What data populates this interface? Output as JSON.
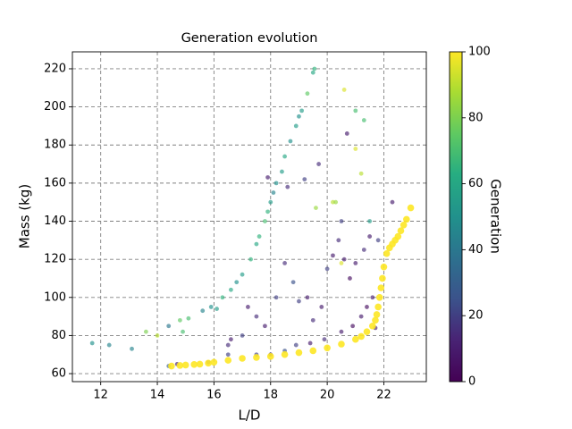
{
  "chart_data": {
    "type": "scatter",
    "title": "Generation evolution",
    "x_label": "L/D",
    "y_label": "Mass (kg)",
    "colorbar_label": "Generation",
    "colormap": "viridis",
    "xlim": [
      11.0,
      23.5
    ],
    "ylim": [
      55.8,
      228.9
    ],
    "xticks": [
      12,
      14,
      16,
      18,
      20,
      22
    ],
    "yticks": [
      60,
      80,
      100,
      120,
      140,
      160,
      180,
      200,
      220
    ],
    "clim": [
      0,
      100
    ],
    "cticks": [
      0,
      20,
      40,
      60,
      80,
      100
    ],
    "grid": true,
    "x": [
      11.7,
      12.3,
      13.1,
      13.6,
      14.0,
      14.4,
      14.8,
      14.9,
      15.1,
      15.6,
      15.9,
      16.1,
      16.3,
      16.6,
      16.8,
      17.0,
      17.3,
      17.5,
      17.6,
      17.8,
      17.9,
      18.0,
      18.1,
      18.2,
      18.4,
      18.5,
      18.7,
      18.9,
      19.0,
      19.1,
      19.3,
      19.5,
      19.55,
      16.6,
      16.5,
      17.0,
      17.2,
      17.5,
      17.8,
      18.2,
      18.5,
      18.8,
      19.0,
      19.3,
      19.5,
      19.8,
      20.0,
      20.2,
      20.4,
      20.5,
      20.6,
      20.8,
      21.0,
      21.3,
      21.5,
      19.7,
      20.7,
      19.2,
      18.6,
      17.9,
      21.0,
      21.2,
      20.2,
      21.8,
      22.3,
      21.6,
      21.4,
      21.2,
      20.9,
      20.5,
      19.9,
      19.4,
      18.9,
      18.5,
      18.0,
      17.5,
      16.5,
      15.8,
      14.4,
      14.7,
      21.7,
      20.6,
      21.3,
      19.6,
      20.3,
      21.0,
      21.5,
      20.5,
      14.5,
      14.8,
      15.0,
      15.3,
      15.5,
      15.8,
      16.0,
      16.5,
      17.0,
      17.5,
      18.0,
      18.5,
      19.0,
      19.5,
      20.0,
      20.5,
      21.0,
      21.2,
      21.4,
      21.6,
      21.7,
      21.75,
      21.8,
      21.85,
      21.9,
      21.95,
      22.0,
      22.1,
      22.2,
      22.3,
      22.4,
      22.5,
      22.6,
      22.7,
      22.8,
      22.95
    ],
    "y": [
      76,
      75,
      73,
      82,
      80,
      85,
      88,
      82,
      89,
      93,
      95,
      94,
      100,
      104,
      108,
      112,
      120,
      128,
      132,
      140,
      145,
      150,
      155,
      160,
      166,
      174,
      182,
      190,
      195,
      198,
      207,
      218,
      220,
      78,
      75,
      80,
      95,
      90,
      85,
      100,
      118,
      108,
      98,
      100,
      88,
      95,
      115,
      122,
      130,
      140,
      120,
      110,
      118,
      125,
      132,
      170,
      186,
      162,
      158,
      163,
      198,
      165,
      150,
      130,
      150,
      100,
      95,
      90,
      85,
      82,
      78,
      76,
      75,
      72,
      70,
      70,
      70,
      66,
      64,
      65,
      84,
      209,
      193,
      147,
      150,
      178,
      140,
      118,
      64,
      64.3,
      64.5,
      64.8,
      65,
      65.5,
      66,
      67,
      68,
      68.5,
      69,
      70,
      71,
      72,
      73.5,
      75.5,
      78,
      79.5,
      82,
      85,
      88,
      91,
      95,
      100,
      105,
      110,
      116,
      123,
      126,
      128,
      130,
      132,
      135,
      138,
      141,
      147
    ],
    "c": [
      50,
      45,
      45,
      80,
      90,
      40,
      75,
      70,
      70,
      45,
      50,
      55,
      65,
      60,
      50,
      55,
      65,
      60,
      65,
      70,
      65,
      55,
      45,
      50,
      55,
      60,
      50,
      55,
      50,
      55,
      75,
      60,
      65,
      10,
      15,
      20,
      10,
      15,
      10,
      20,
      15,
      25,
      20,
      10,
      15,
      10,
      20,
      10,
      15,
      20,
      10,
      5,
      10,
      15,
      10,
      15,
      10,
      20,
      15,
      10,
      70,
      90,
      90,
      20,
      10,
      10,
      5,
      10,
      5,
      10,
      15,
      10,
      20,
      25,
      15,
      20,
      20,
      15,
      30,
      10,
      10,
      95,
      70,
      85,
      85,
      95,
      55,
      95,
      100,
      100,
      100,
      100,
      100,
      100,
      100,
      100,
      100,
      100,
      100,
      100,
      100,
      100,
      100,
      100,
      100,
      100,
      100,
      100,
      100,
      100,
      100,
      100,
      100,
      100,
      100,
      100,
      100,
      100,
      100,
      100,
      100,
      100,
      100,
      100
    ]
  }
}
